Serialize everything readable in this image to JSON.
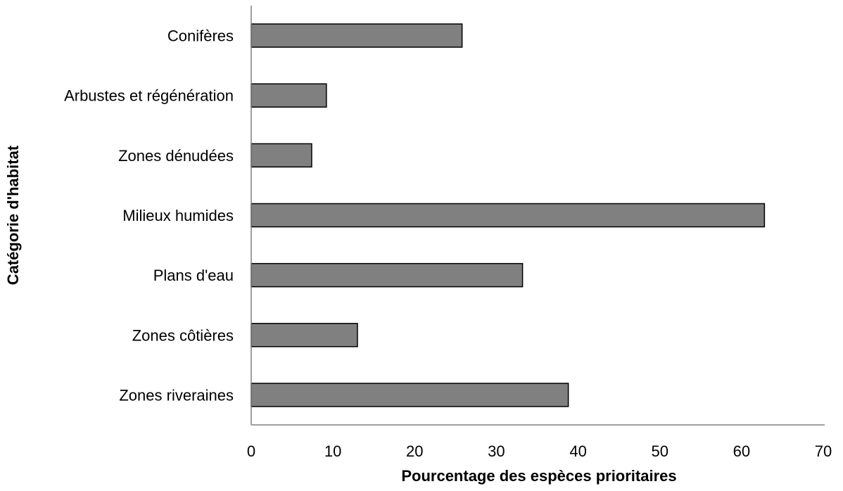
{
  "chart_data": {
    "type": "bar",
    "orientation": "horizontal",
    "categories": [
      "Conifères",
      "Arbustes et régénération",
      "Zones dénudées",
      "Milieux humides",
      "Plans d'eau",
      "Zones côtières",
      "Zones riveraines"
    ],
    "values": [
      25.8,
      9.2,
      7.4,
      62.8,
      33.2,
      13.0,
      38.8
    ],
    "xlabel": "Pourcentage des espèces prioritaires",
    "ylabel": "Catégorie d'habitat",
    "xlim": [
      0,
      70
    ],
    "xticks": [
      0,
      10,
      20,
      30,
      40,
      50,
      60,
      70
    ],
    "grid": false,
    "legend": "none",
    "bar_color": "#808080"
  }
}
